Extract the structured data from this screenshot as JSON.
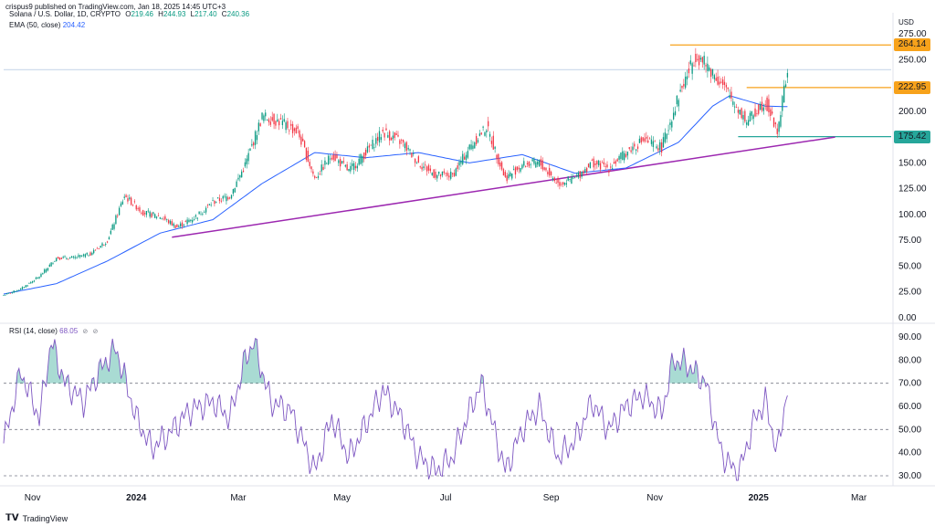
{
  "header": {
    "publisher": "crispus9 published on TradingView.com, Jan 18, 2025 14:45 UTC+3"
  },
  "legend": {
    "title": "Solana / U.S. Dollar, 1D, CRYPTO",
    "ohlc": [
      {
        "k": "O",
        "v": "219.46"
      },
      {
        "k": "H",
        "v": "244.93"
      },
      {
        "k": "L",
        "v": "217.40"
      },
      {
        "k": "C",
        "v": "240.36"
      }
    ],
    "ema_label": "EMA (50, close)",
    "ema_value": "204.42",
    "rsi_label": "RSI (14, close)",
    "rsi_value": "68.05"
  },
  "price_labels": [
    {
      "text": "264.14",
      "value": 264.14,
      "color": "#f7a21b"
    },
    {
      "text": "222.95",
      "value": 222.95,
      "color": "#f7a21b"
    },
    {
      "text": "175.42",
      "value": 175.42,
      "color": "#26a69a"
    }
  ],
  "footer": {
    "brand": "TradingView"
  },
  "chart_data": [
    {
      "type": "candlestick",
      "title": "Solana / U.S. Dollar, 1D, CRYPTO",
      "currency": "USD",
      "y_axis_ticks": [
        "275.00",
        "250.00",
        "225.00",
        "200.00",
        "175.00",
        "150.00",
        "125.00",
        "100.00",
        "75.00",
        "50.00",
        "25.00",
        "0.00"
      ],
      "ylim": [
        0,
        275
      ],
      "x_axis_ticks": [
        "Nov",
        "2024",
        "Mar",
        "May",
        "Jul",
        "Sep",
        "Nov",
        "2025",
        "Mar"
      ],
      "x_axis_tick_dates": [
        "2023-11-01",
        "2024-01-01",
        "2024-03-01",
        "2024-05-01",
        "2024-07-01",
        "2024-09-01",
        "2024-11-01",
        "2025-01-01",
        "2025-03-01"
      ],
      "series": [
        {
          "name": "Solana / U.S. Dollar, 1D",
          "points": [
            [
              "2023-10-15",
              22
            ],
            [
              "2023-10-25",
              28
            ],
            [
              "2023-11-05",
              40
            ],
            [
              "2023-11-15",
              58
            ],
            [
              "2023-11-25",
              58
            ],
            [
              "2023-12-05",
              62
            ],
            [
              "2023-12-15",
              75
            ],
            [
              "2023-12-25",
              118
            ],
            [
              "2024-01-05",
              102
            ],
            [
              "2024-01-15",
              98
            ],
            [
              "2024-01-25",
              88
            ],
            [
              "2024-02-05",
              98
            ],
            [
              "2024-02-15",
              112
            ],
            [
              "2024-02-25",
              118
            ],
            [
              "2024-03-05",
              148
            ],
            [
              "2024-03-15",
              195
            ],
            [
              "2024-03-25",
              190
            ],
            [
              "2024-04-05",
              180
            ],
            [
              "2024-04-15",
              135
            ],
            [
              "2024-04-25",
              158
            ],
            [
              "2024-05-05",
              142
            ],
            [
              "2024-05-15",
              160
            ],
            [
              "2024-05-25",
              180
            ],
            [
              "2024-06-05",
              170
            ],
            [
              "2024-06-15",
              150
            ],
            [
              "2024-06-25",
              138
            ],
            [
              "2024-07-05",
              138
            ],
            [
              "2024-07-15",
              165
            ],
            [
              "2024-07-25",
              185
            ],
            [
              "2024-08-05",
              135
            ],
            [
              "2024-08-15",
              148
            ],
            [
              "2024-08-25",
              150
            ],
            [
              "2024-09-05",
              130
            ],
            [
              "2024-09-15",
              135
            ],
            [
              "2024-09-25",
              150
            ],
            [
              "2024-10-05",
              145
            ],
            [
              "2024-10-15",
              160
            ],
            [
              "2024-10-25",
              172
            ],
            [
              "2024-11-05",
              165
            ],
            [
              "2024-11-15",
              215
            ],
            [
              "2024-11-25",
              255
            ],
            [
              "2024-12-05",
              238
            ],
            [
              "2024-12-15",
              215
            ],
            [
              "2024-12-25",
              190
            ],
            [
              "2025-01-05",
              210
            ],
            [
              "2025-01-12",
              180
            ],
            [
              "2025-01-18",
              240
            ]
          ]
        },
        {
          "name": "EMA (50, close)",
          "points": [
            [
              "2023-10-15",
              23
            ],
            [
              "2023-11-15",
              33
            ],
            [
              "2023-12-15",
              55
            ],
            [
              "2024-01-15",
              82
            ],
            [
              "2024-02-15",
              95
            ],
            [
              "2024-03-15",
              130
            ],
            [
              "2024-04-15",
              160
            ],
            [
              "2024-05-15",
              155
            ],
            [
              "2024-06-15",
              160
            ],
            [
              "2024-07-15",
              150
            ],
            [
              "2024-08-15",
              158
            ],
            [
              "2024-09-15",
              140
            ],
            [
              "2024-10-15",
              145
            ],
            [
              "2024-11-15",
              170
            ],
            [
              "2024-12-05",
              205
            ],
            [
              "2024-12-15",
              215
            ],
            [
              "2025-01-05",
              205
            ],
            [
              "2025-01-18",
              204.42
            ]
          ]
        }
      ],
      "horizontal_levels": [
        264.14,
        222.95,
        175.42
      ],
      "trendline": {
        "start": [
          "2024-01-22",
          78
        ],
        "end": [
          "2025-02-15",
          175
        ]
      }
    },
    {
      "type": "line",
      "title": "RSI (14, close)",
      "y_axis_ticks": [
        "90.00",
        "80.00",
        "70.00",
        "60.00",
        "50.00",
        "40.00",
        "30.00"
      ],
      "ylim": [
        28,
        92
      ],
      "bands": [
        70,
        50,
        30
      ],
      "series": [
        {
          "name": "RSI (14, close)",
          "points": [
            [
              "2023-10-15",
              44
            ],
            [
              "2023-10-25",
              75
            ],
            [
              "2023-11-05",
              55
            ],
            [
              "2023-11-12",
              88
            ],
            [
              "2023-11-20",
              70
            ],
            [
              "2023-12-01",
              62
            ],
            [
              "2023-12-10",
              75
            ],
            [
              "2023-12-20",
              85
            ],
            [
              "2024-01-01",
              55
            ],
            [
              "2024-01-10",
              42
            ],
            [
              "2024-01-20",
              48
            ],
            [
              "2024-02-01",
              58
            ],
            [
              "2024-02-15",
              62
            ],
            [
              "2024-02-25",
              55
            ],
            [
              "2024-03-05",
              80
            ],
            [
              "2024-03-10",
              88
            ],
            [
              "2024-03-20",
              62
            ],
            [
              "2024-04-01",
              58
            ],
            [
              "2024-04-15",
              32
            ],
            [
              "2024-04-25",
              55
            ],
            [
              "2024-05-05",
              38
            ],
            [
              "2024-05-15",
              52
            ],
            [
              "2024-05-25",
              67
            ],
            [
              "2024-06-05",
              55
            ],
            [
              "2024-06-15",
              38
            ],
            [
              "2024-06-25",
              32
            ],
            [
              "2024-07-05",
              38
            ],
            [
              "2024-07-15",
              58
            ],
            [
              "2024-07-22",
              70
            ],
            [
              "2024-08-05",
              32
            ],
            [
              "2024-08-15",
              50
            ],
            [
              "2024-08-25",
              60
            ],
            [
              "2024-09-05",
              38
            ],
            [
              "2024-09-15",
              45
            ],
            [
              "2024-09-25",
              62
            ],
            [
              "2024-10-05",
              50
            ],
            [
              "2024-10-15",
              60
            ],
            [
              "2024-10-25",
              65
            ],
            [
              "2024-11-05",
              57
            ],
            [
              "2024-11-12",
              80
            ],
            [
              "2024-11-20",
              78
            ],
            [
              "2024-12-01",
              70
            ],
            [
              "2024-12-10",
              40
            ],
            [
              "2024-12-20",
              30
            ],
            [
              "2024-12-30",
              55
            ],
            [
              "2025-01-05",
              62
            ],
            [
              "2025-01-12",
              40
            ],
            [
              "2025-01-18",
              68.05
            ]
          ]
        }
      ]
    }
  ]
}
